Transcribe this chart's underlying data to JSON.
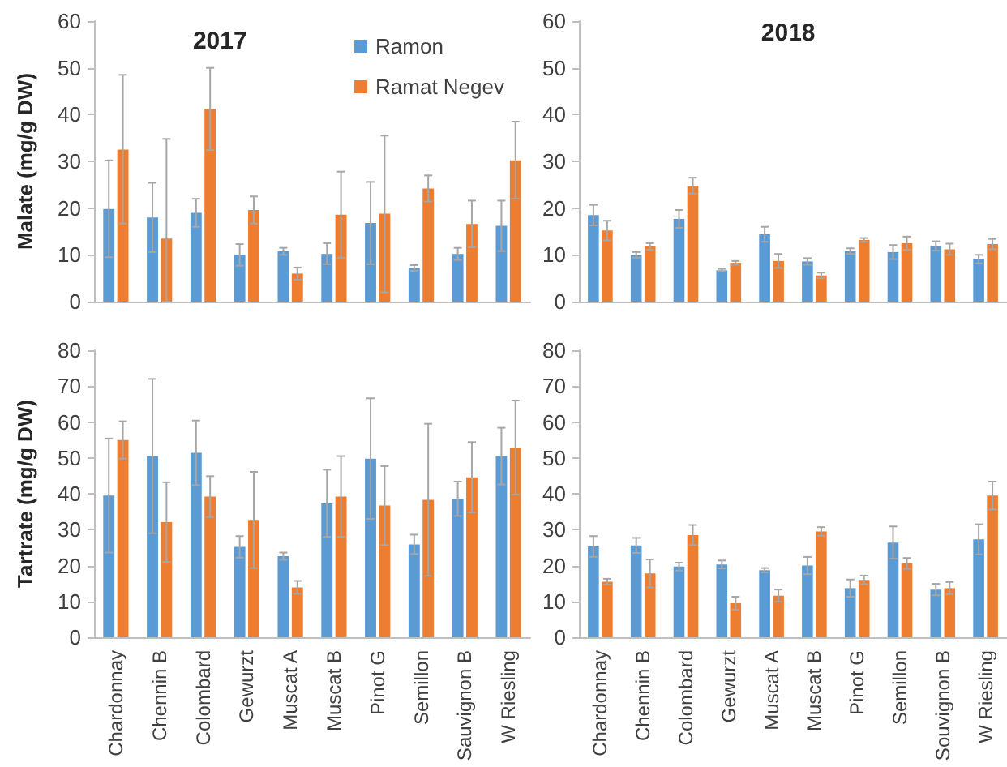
{
  "chart_data": [
    {
      "type": "bar",
      "title": "2017",
      "ylabel": "Malate (mg/g DW)",
      "categories": [
        null,
        null,
        null,
        null,
        null,
        null,
        null,
        null,
        null,
        null
      ],
      "ylim": [
        0,
        60
      ],
      "yticks": [
        0,
        10,
        20,
        30,
        40,
        50,
        60
      ],
      "legend": "top right",
      "series": [
        {
          "name": "Ramon",
          "color": "#5b9bd5",
          "values": [
            19.8,
            18.0,
            19.0,
            10.0,
            10.8,
            10.2,
            16.8,
            7.2,
            10.2,
            16.2
          ],
          "errors": [
            [
              9.5,
              30.2
            ],
            [
              10.6,
              25.4
            ],
            [
              16,
              22
            ],
            [
              7.7,
              12.3
            ],
            [
              10,
              11.5
            ],
            [
              8,
              12.5
            ],
            [
              8,
              25.6
            ],
            [
              6.6,
              7.8
            ],
            [
              8.9,
              11.5
            ],
            [
              10.8,
              21.6
            ]
          ]
        },
        {
          "name": "Ramat Negev",
          "color": "#ed7d31",
          "values": [
            32.5,
            13.5,
            41.2,
            19.6,
            6.0,
            18.6,
            18.8,
            24.2,
            16.6,
            30.2
          ],
          "errors": [
            [
              16.7,
              48.5
            ],
            [
              0,
              34.8
            ],
            [
              32.4,
              50
            ],
            [
              16.7,
              22.5
            ],
            [
              4.7,
              7.3
            ],
            [
              9.4,
              27.8
            ],
            [
              2,
              35.5
            ],
            [
              21.4,
              27
            ],
            [
              11.6,
              21.6
            ],
            [
              22,
              38.5
            ]
          ]
        }
      ]
    },
    {
      "type": "bar",
      "title": "2018",
      "categories": [
        null,
        null,
        null,
        null,
        null,
        null,
        null,
        null,
        null,
        null
      ],
      "ylim": [
        0,
        60
      ],
      "yticks": [
        0,
        10,
        20,
        30,
        40,
        50,
        60
      ],
      "series": [
        {
          "color": "#5b9bd5",
          "values": [
            18.5,
            10.0,
            17.7,
            6.7,
            14.4,
            8.6,
            10.8,
            10.6,
            11.9,
            9.1
          ],
          "errors": [
            [
              16.3,
              20.7
            ],
            [
              9.4,
              10.6
            ],
            [
              15.8,
              19.6
            ],
            [
              6.4,
              7
            ],
            [
              12.8,
              16
            ],
            [
              7.9,
              9.3
            ],
            [
              10.2,
              11.4
            ],
            [
              9.1,
              12.1
            ],
            [
              10.9,
              12.9
            ],
            [
              8.2,
              10
            ]
          ]
        },
        {
          "color": "#ed7d31",
          "values": [
            15.2,
            11.8,
            24.8,
            8.3,
            8.7,
            5.6,
            13.2,
            12.5,
            11.2,
            12.3
          ],
          "errors": [
            [
              13.1,
              17.3
            ],
            [
              11.1,
              12.5
            ],
            [
              23.1,
              26.5
            ],
            [
              7.9,
              8.7
            ],
            [
              7.2,
              10.2
            ],
            [
              5,
              6.2
            ],
            [
              12.8,
              13.6
            ],
            [
              11.1,
              13.9
            ],
            [
              10,
              12.4
            ],
            [
              11.2,
              13.4
            ]
          ]
        }
      ]
    },
    {
      "type": "bar",
      "ylabel": "Tartrate (mg/g DW)",
      "categories": [
        "Chardonnay",
        "Chennin B",
        "Colombard",
        "Gewurzt",
        "Muscat A",
        "Muscat B",
        "Pinot G",
        "Semillon",
        "Sauvignon B",
        "W Riesling"
      ],
      "ylim": [
        0,
        80
      ],
      "yticks": [
        0,
        10,
        20,
        30,
        40,
        50,
        60,
        70,
        80
      ],
      "series": [
        {
          "color": "#5b9bd5",
          "values": [
            39.5,
            50.5,
            51.4,
            25.2,
            22.6,
            37.3,
            49.8,
            25.9,
            38.6,
            50.5
          ],
          "errors": [
            [
              23.6,
              55.4
            ],
            [
              29,
              72
            ],
            [
              42.4,
              60.4
            ],
            [
              22.2,
              28.2
            ],
            [
              21.6,
              23.6
            ],
            [
              28,
              46.7
            ],
            [
              33,
              66.6
            ],
            [
              23.2,
              28.6
            ],
            [
              33.8,
              43.4
            ],
            [
              42.6,
              58.4
            ]
          ]
        },
        {
          "color": "#ed7d31",
          "values": [
            55.0,
            32.1,
            39.2,
            32.7,
            13.9,
            39.2,
            36.7,
            38.3,
            44.6,
            52.9
          ],
          "errors": [
            [
              49.8,
              60.2
            ],
            [
              21,
              43.2
            ],
            [
              33.5,
              44.9
            ],
            [
              19.3,
              46.1
            ],
            [
              12.1,
              15.7
            ],
            [
              28,
              50.5
            ],
            [
              25.7,
              47.7
            ],
            [
              17.1,
              59.5
            ],
            [
              34.8,
              54.4
            ],
            [
              39.8,
              66
            ]
          ]
        }
      ]
    },
    {
      "type": "bar",
      "categories": [
        "Chardonnay",
        "Chennin B",
        "Colombard",
        "Gewurzt",
        "Muscat A",
        "Muscat B",
        "Pinot G",
        "Semillon",
        "Souvignon B",
        "W Riesling"
      ],
      "ylim": [
        0,
        80
      ],
      "yticks": [
        0,
        10,
        20,
        30,
        40,
        50,
        60,
        70,
        80
      ],
      "series": [
        {
          "color": "#5b9bd5",
          "values": [
            25.3,
            25.6,
            19.7,
            20.3,
            18.7,
            20.0,
            13.7,
            26.4,
            13.3,
            27.3
          ],
          "errors": [
            [
              22.4,
              28.2
            ],
            [
              23.5,
              27.7
            ],
            [
              18.6,
              20.8
            ],
            [
              19.2,
              21.4
            ],
            [
              18.1,
              19.3
            ],
            [
              17.6,
              22.4
            ],
            [
              11.3,
              16.1
            ],
            [
              21.9,
              30.9
            ],
            [
              11.7,
              14.9
            ],
            [
              23.1,
              31.5
            ]
          ]
        },
        {
          "color": "#ed7d31",
          "values": [
            15.5,
            17.8,
            28.5,
            9.5,
            11.6,
            29.5,
            16.0,
            20.6,
            13.7,
            39.5
          ],
          "errors": [
            [
              14.7,
              16.3
            ],
            [
              13.9,
              21.7
            ],
            [
              25.7,
              31.3
            ],
            [
              7.7,
              11.3
            ],
            [
              9.9,
              13.3
            ],
            [
              28.3,
              30.7
            ],
            [
              14.8,
              17.2
            ],
            [
              19.1,
              22.1
            ],
            [
              12,
              15.4
            ],
            [
              35.6,
              43.4
            ]
          ]
        }
      ]
    }
  ]
}
